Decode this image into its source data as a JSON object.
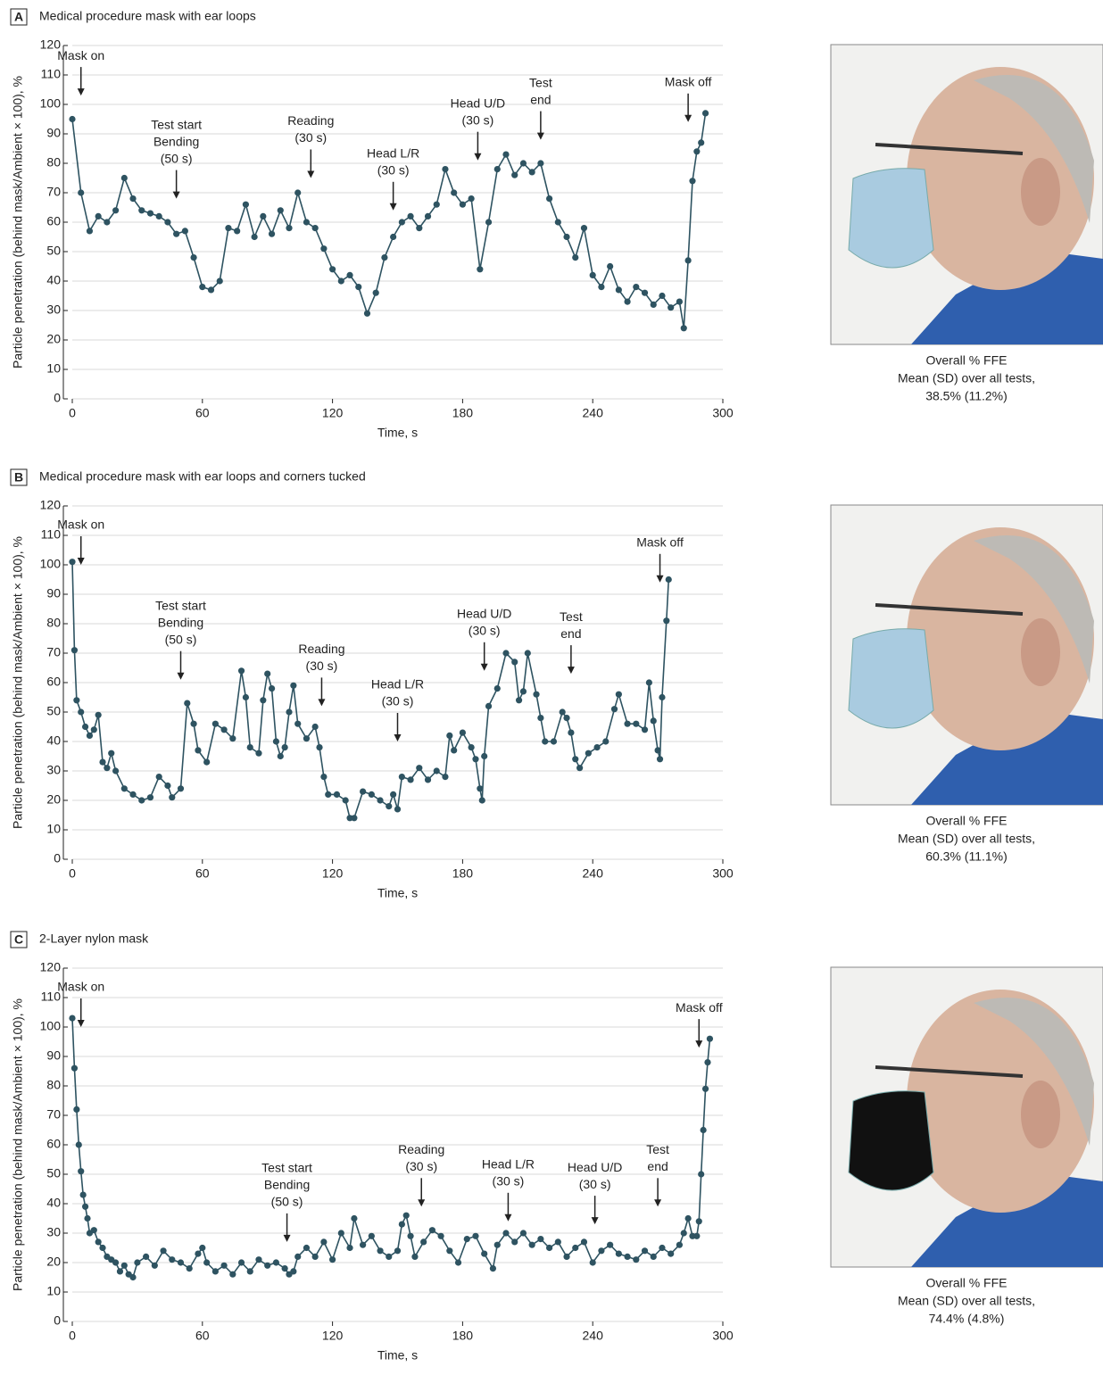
{
  "chart_data": [
    {
      "type": "line",
      "panel": "A",
      "title": "Medical procedure mask with ear loops",
      "xlabel": "Time, s",
      "ylabel": "Particle penetration (behind mask/Ambient × 100), %",
      "xlim": [
        0,
        300
      ],
      "ylim": [
        0,
        120
      ],
      "xticks": [
        0,
        60,
        120,
        180,
        240,
        300
      ],
      "yticks": [
        0,
        10,
        20,
        30,
        40,
        50,
        60,
        70,
        80,
        90,
        100,
        110,
        120
      ],
      "grid": true,
      "x": [
        0,
        4,
        8,
        12,
        16,
        20,
        24,
        28,
        32,
        36,
        40,
        44,
        48,
        52,
        56,
        60,
        64,
        68,
        72,
        76,
        80,
        84,
        88,
        92,
        96,
        100,
        104,
        108,
        112,
        116,
        120,
        124,
        128,
        132,
        136,
        140,
        144,
        148,
        152,
        156,
        160,
        164,
        168,
        172,
        176,
        180,
        184,
        188,
        192,
        196,
        200,
        204,
        208,
        212,
        216,
        220,
        224,
        228,
        232,
        236,
        240,
        244,
        248,
        252,
        256,
        260,
        264,
        268,
        272,
        276,
        280,
        282,
        284,
        286,
        288,
        290,
        292
      ],
      "series": [
        {
          "name": "Particle penetration",
          "color": "#2e5361",
          "values": [
            95,
            70,
            57,
            62,
            60,
            64,
            75,
            68,
            64,
            63,
            62,
            60,
            56,
            57,
            48,
            38,
            37,
            40,
            58,
            57,
            66,
            55,
            62,
            56,
            64,
            58,
            70,
            60,
            58,
            51,
            44,
            40,
            42,
            38,
            29,
            36,
            48,
            55,
            60,
            62,
            58,
            62,
            66,
            78,
            70,
            66,
            68,
            44,
            60,
            78,
            83,
            76,
            80,
            77,
            80,
            68,
            60,
            55,
            48,
            58,
            42,
            38,
            45,
            37,
            33,
            38,
            36,
            32,
            35,
            31,
            33,
            24,
            47,
            74,
            84,
            87,
            97
          ]
        }
      ],
      "annotations": [
        {
          "text": [
            "Mask on"
          ],
          "x": 4,
          "y": 103
        },
        {
          "text": [
            "Test start",
            "Bending",
            "(50 s)"
          ],
          "x": 48,
          "y": 68
        },
        {
          "text": [
            "Reading",
            "(30 s)"
          ],
          "x": 110,
          "y": 75
        },
        {
          "text": [
            "Head L/R",
            "(30 s)"
          ],
          "x": 148,
          "y": 64
        },
        {
          "text": [
            "Head U/D",
            "(30 s)"
          ],
          "x": 187,
          "y": 81
        },
        {
          "text": [
            "Test",
            "end"
          ],
          "x": 216,
          "y": 88
        },
        {
          "text": [
            "Mask off"
          ],
          "x": 284,
          "y": 94
        }
      ],
      "caption": [
        "Overall % FFE",
        "Mean (SD) over all tests,",
        "38.5% (11.2%)"
      ]
    },
    {
      "type": "line",
      "panel": "B",
      "title": "Medical procedure mask with ear loops and corners tucked",
      "xlabel": "Time, s",
      "ylabel": "Particle penetration (behind mask/Ambient × 100), %",
      "xlim": [
        0,
        300
      ],
      "ylim": [
        0,
        120
      ],
      "xticks": [
        0,
        60,
        120,
        180,
        240,
        300
      ],
      "yticks": [
        0,
        10,
        20,
        30,
        40,
        50,
        60,
        70,
        80,
        90,
        100,
        110,
        120
      ],
      "grid": true,
      "x": [
        0,
        1,
        2,
        4,
        6,
        8,
        10,
        12,
        14,
        16,
        18,
        20,
        24,
        28,
        32,
        36,
        40,
        44,
        46,
        50,
        53,
        56,
        58,
        62,
        66,
        70,
        74,
        78,
        80,
        82,
        86,
        88,
        90,
        92,
        94,
        96,
        98,
        100,
        102,
        104,
        108,
        112,
        114,
        116,
        118,
        122,
        126,
        128,
        130,
        134,
        138,
        142,
        146,
        148,
        150,
        152,
        156,
        160,
        164,
        168,
        172,
        174,
        176,
        180,
        184,
        186,
        188,
        189,
        190,
        192,
        196,
        200,
        204,
        206,
        208,
        210,
        214,
        216,
        218,
        222,
        226,
        228,
        230,
        232,
        234,
        238,
        242,
        246,
        250,
        252,
        256,
        260,
        264,
        266,
        268,
        270,
        271,
        272,
        274,
        275
      ],
      "series": [
        {
          "name": "Particle penetration",
          "color": "#2e5361",
          "values": [
            101,
            71,
            54,
            50,
            45,
            42,
            44,
            49,
            33,
            31,
            36,
            30,
            24,
            22,
            20,
            21,
            28,
            25,
            21,
            24,
            53,
            46,
            37,
            33,
            46,
            44,
            41,
            64,
            55,
            38,
            36,
            54,
            63,
            58,
            40,
            35,
            38,
            50,
            59,
            46,
            41,
            45,
            38,
            28,
            22,
            22,
            20,
            14,
            14,
            23,
            22,
            20,
            18,
            22,
            17,
            28,
            27,
            31,
            27,
            30,
            28,
            42,
            37,
            43,
            38,
            34,
            24,
            20,
            35,
            52,
            58,
            70,
            67,
            54,
            57,
            70,
            56,
            48,
            40,
            40,
            50,
            48,
            43,
            34,
            31,
            36,
            38,
            40,
            51,
            56,
            46,
            46,
            44,
            60,
            47,
            37,
            34,
            55,
            81,
            95
          ]
        }
      ],
      "annotations": [
        {
          "text": [
            "Mask on"
          ],
          "x": 4,
          "y": 100
        },
        {
          "text": [
            "Test start",
            "Bending",
            "(50 s)"
          ],
          "x": 50,
          "y": 61
        },
        {
          "text": [
            "Reading",
            "(30 s)"
          ],
          "x": 115,
          "y": 52
        },
        {
          "text": [
            "Head L/R",
            "(30 s)"
          ],
          "x": 150,
          "y": 40
        },
        {
          "text": [
            "Head U/D",
            "(30 s)"
          ],
          "x": 190,
          "y": 64
        },
        {
          "text": [
            "Test",
            "end"
          ],
          "x": 230,
          "y": 63
        },
        {
          "text": [
            "Mask off"
          ],
          "x": 271,
          "y": 94
        }
      ],
      "caption": [
        "Overall % FFE",
        "Mean (SD) over all tests,",
        "60.3% (11.1%)"
      ]
    },
    {
      "type": "line",
      "panel": "C",
      "title": "2-Layer nylon mask",
      "xlabel": "Time, s",
      "ylabel": "Particle penetration (behind mask/Ambient × 100), %",
      "xlim": [
        0,
        300
      ],
      "ylim": [
        0,
        120
      ],
      "xticks": [
        0,
        60,
        120,
        180,
        240,
        300
      ],
      "yticks": [
        0,
        10,
        20,
        30,
        40,
        50,
        60,
        70,
        80,
        90,
        100,
        110,
        120
      ],
      "grid": true,
      "x": [
        0,
        1,
        2,
        3,
        4,
        5,
        6,
        7,
        8,
        10,
        12,
        14,
        16,
        18,
        20,
        22,
        24,
        26,
        28,
        30,
        34,
        38,
        42,
        46,
        50,
        54,
        58,
        60,
        62,
        66,
        70,
        74,
        78,
        82,
        86,
        90,
        94,
        98,
        100,
        102,
        104,
        108,
        112,
        116,
        120,
        124,
        128,
        130,
        134,
        138,
        142,
        146,
        150,
        152,
        154,
        156,
        158,
        162,
        166,
        170,
        174,
        178,
        182,
        186,
        190,
        194,
        196,
        200,
        204,
        208,
        212,
        216,
        220,
        224,
        228,
        232,
        236,
        240,
        244,
        248,
        252,
        256,
        260,
        264,
        268,
        272,
        276,
        280,
        282,
        284,
        286,
        288,
        289,
        290,
        291,
        292,
        293,
        294
      ],
      "series": [
        {
          "name": "Particle penetration",
          "color": "#2e5361",
          "values": [
            103,
            86,
            72,
            60,
            51,
            43,
            39,
            35,
            30,
            31,
            27,
            25,
            22,
            21,
            20,
            17,
            19,
            16,
            15,
            20,
            22,
            19,
            24,
            21,
            20,
            18,
            23,
            25,
            20,
            17,
            19,
            16,
            20,
            17,
            21,
            19,
            20,
            18,
            16,
            17,
            22,
            25,
            22,
            27,
            21,
            30,
            25,
            35,
            26,
            29,
            24,
            22,
            24,
            33,
            36,
            29,
            22,
            27,
            31,
            29,
            24,
            20,
            28,
            29,
            23,
            18,
            26,
            30,
            27,
            30,
            26,
            28,
            25,
            27,
            22,
            25,
            27,
            20,
            24,
            26,
            23,
            22,
            21,
            24,
            22,
            25,
            23,
            26,
            30,
            35,
            29,
            29,
            34,
            50,
            65,
            79,
            88,
            96
          ]
        }
      ],
      "annotations": [
        {
          "text": [
            "Mask on"
          ],
          "x": 4,
          "y": 100
        },
        {
          "text": [
            "Test start",
            "Bending",
            "(50 s)"
          ],
          "x": 99,
          "y": 27
        },
        {
          "text": [
            "Reading",
            "(30 s)"
          ],
          "x": 161,
          "y": 39
        },
        {
          "text": [
            "Head L/R",
            "(30 s)"
          ],
          "x": 201,
          "y": 34
        },
        {
          "text": [
            "Head U/D",
            "(30 s)"
          ],
          "x": 241,
          "y": 33
        },
        {
          "text": [
            "Test",
            "end"
          ],
          "x": 270,
          "y": 39
        },
        {
          "text": [
            "Mask off"
          ],
          "x": 289,
          "y": 93
        }
      ],
      "caption": [
        "Overall % FFE",
        "Mean (SD) over all tests,",
        "74.4% (4.8%)"
      ]
    }
  ]
}
